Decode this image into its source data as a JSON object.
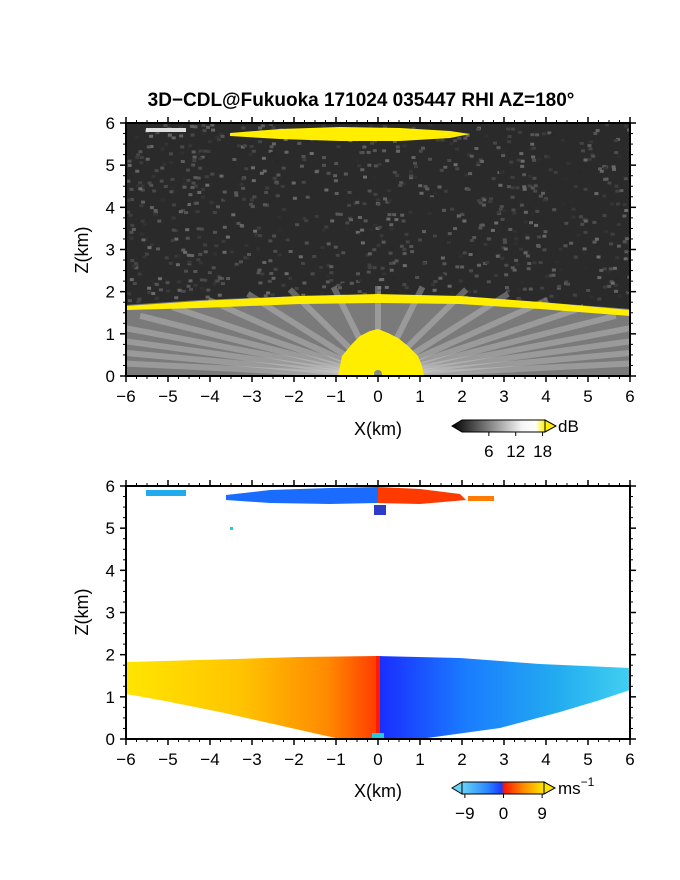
{
  "title": "3D−CDL@Fukuoka 171024 035447 RHI AZ=180°",
  "colors": {
    "echo_bg": "#2a2a2a",
    "echo_yellow": "#ffee00",
    "vel_neg": "#1a5cff",
    "vel_pos": "#ff2a00",
    "vel_light_neg": "#33bbee",
    "vel_light_pos": "#ffd000"
  },
  "chart_data": [
    {
      "type": "heatmap",
      "name": "intensity",
      "xlabel": "X(km)",
      "ylabel": "Z(km)",
      "xlim": [
        -6,
        6
      ],
      "ylim": [
        0,
        6
      ],
      "xticks": [
        "−6",
        "−5",
        "−4",
        "−3",
        "−2",
        "−1",
        "0",
        "1",
        "2",
        "3",
        "4",
        "5",
        "6"
      ],
      "yticks": [
        "0",
        "1",
        "2",
        "3",
        "4",
        "5",
        "6"
      ],
      "colorbar": {
        "unit": "dB",
        "ticks": [
          "6",
          "12",
          "18"
        ],
        "range": [
          0,
          21
        ]
      },
      "layers": {
        "upper_layer": {
          "x": [
            -5.6,
            2.4
          ],
          "z": 5.8
        },
        "lower_layer_top": 1.7,
        "near_field_peak": {
          "x": 0,
          "z": 0.7
        }
      }
    },
    {
      "type": "heatmap",
      "name": "velocity",
      "xlabel": "X(km)",
      "ylabel": "Z(km)",
      "xlim": [
        -6,
        6
      ],
      "ylim": [
        0,
        6
      ],
      "xticks": [
        "−6",
        "−5",
        "−4",
        "−3",
        "−2",
        "−1",
        "0",
        "1",
        "2",
        "3",
        "4",
        "5",
        "6"
      ],
      "yticks": [
        "0",
        "1",
        "2",
        "3",
        "4",
        "5",
        "6"
      ],
      "colorbar": {
        "unit": "ms⁻¹",
        "unit_main": "ms",
        "unit_exp": "−1",
        "ticks": [
          "−9",
          "0",
          "9"
        ],
        "range": [
          -12,
          12
        ]
      },
      "layers": {
        "upper_layer": {
          "x": [
            -5.5,
            2.9
          ],
          "z": 5.8
        },
        "lower_layer_top": 1.9,
        "sign_change_x": 0
      }
    }
  ]
}
